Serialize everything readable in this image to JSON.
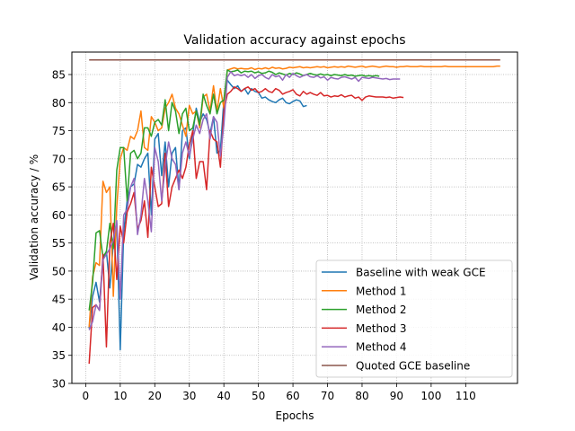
{
  "chart_data": {
    "type": "line",
    "title": "Validation accuracy against epochs",
    "xlabel": "Epochs",
    "ylabel": "Validation accuracy / %",
    "xlim": [
      -4,
      125
    ],
    "ylim": [
      30,
      89
    ],
    "xticks": [
      0,
      10,
      20,
      30,
      40,
      50,
      60,
      70,
      80,
      90,
      100,
      110
    ],
    "yticks": [
      30,
      35,
      40,
      45,
      50,
      55,
      60,
      65,
      70,
      75,
      80,
      85
    ],
    "grid": true,
    "legend_position": "bottom-right",
    "series": [
      {
        "name": "Baseline with weak GCE",
        "color": "#1f77b4",
        "x": [
          1,
          2,
          3,
          4,
          5,
          6,
          7,
          8,
          9,
          10,
          11,
          12,
          13,
          14,
          15,
          16,
          17,
          18,
          19,
          20,
          21,
          22,
          23,
          24,
          25,
          26,
          27,
          28,
          29,
          30,
          31,
          32,
          33,
          34,
          35,
          36,
          37,
          38,
          39,
          40,
          41,
          42,
          43,
          44,
          45,
          46,
          47,
          48,
          49,
          50,
          51,
          52,
          53,
          54,
          55,
          56,
          57,
          58,
          59,
          60,
          61,
          62,
          63,
          64
        ],
        "y": [
          39.8,
          45.5,
          48.0,
          44.5,
          52.0,
          53.5,
          47.0,
          55.0,
          58.5,
          36.0,
          57.0,
          62.5,
          65.0,
          65.5,
          69.0,
          68.5,
          70.0,
          71.0,
          60.0,
          73.5,
          74.5,
          67.0,
          73.0,
          65.0,
          71.0,
          72.0,
          64.5,
          75.0,
          75.5,
          70.0,
          74.5,
          79.0,
          76.5,
          78.0,
          77.0,
          74.5,
          77.5,
          71.0,
          71.5,
          80.5,
          84.0,
          83.2,
          82.5,
          83.0,
          82.0,
          82.5,
          81.5,
          82.5,
          82.0,
          81.8,
          80.8,
          81.0,
          80.5,
          80.2,
          80.0,
          80.5,
          80.8,
          80.0,
          79.8,
          80.2,
          80.5,
          80.3,
          79.3,
          79.5
        ]
      },
      {
        "name": "Method 1",
        "color": "#ff7f0e",
        "x": [
          1,
          2,
          3,
          4,
          5,
          6,
          7,
          8,
          9,
          10,
          11,
          12,
          13,
          14,
          15,
          16,
          17,
          18,
          19,
          20,
          21,
          22,
          23,
          24,
          25,
          26,
          27,
          28,
          29,
          30,
          31,
          32,
          33,
          34,
          35,
          36,
          37,
          38,
          39,
          40,
          41,
          42,
          43,
          44,
          45,
          46,
          47,
          48,
          49,
          50,
          51,
          52,
          53,
          54,
          55,
          56,
          57,
          58,
          59,
          60,
          61,
          62,
          63,
          64,
          65,
          66,
          67,
          68,
          69,
          70,
          71,
          72,
          73,
          74,
          75,
          76,
          77,
          78,
          79,
          80,
          81,
          82,
          83,
          84,
          85,
          86,
          87,
          88,
          89,
          90,
          91,
          92,
          93,
          94,
          95,
          96,
          97,
          98,
          99,
          100,
          101,
          102,
          103,
          104,
          105,
          106,
          107,
          108,
          109,
          110,
          111,
          112,
          113,
          114,
          115,
          116,
          117,
          118,
          119,
          120
        ],
        "y": [
          40.0,
          49.0,
          51.5,
          51.0,
          66.0,
          64.0,
          65.0,
          45.5,
          61.5,
          70.0,
          72.0,
          71.5,
          74.0,
          73.5,
          75.0,
          78.5,
          72.0,
          71.5,
          77.5,
          76.5,
          75.0,
          75.5,
          79.0,
          80.0,
          81.5,
          79.0,
          78.0,
          76.0,
          74.0,
          79.5,
          78.0,
          78.5,
          75.5,
          81.0,
          81.5,
          78.5,
          83.0,
          78.5,
          82.5,
          79.0,
          85.8,
          86.0,
          86.2,
          86.0,
          86.1,
          86.0,
          86.0,
          86.2,
          85.9,
          86.1,
          86.0,
          86.2,
          86.0,
          86.3,
          86.1,
          86.2,
          86.0,
          86.1,
          86.3,
          86.2,
          86.3,
          86.4,
          86.2,
          86.3,
          86.2,
          86.3,
          86.4,
          86.3,
          86.4,
          86.2,
          86.3,
          86.4,
          86.3,
          86.4,
          86.3,
          86.5,
          86.4,
          86.3,
          86.4,
          86.5,
          86.3,
          86.4,
          86.5,
          86.4,
          86.3,
          86.4,
          86.5,
          86.4,
          86.4,
          86.3,
          86.4,
          86.4,
          86.5,
          86.4,
          86.4,
          86.4,
          86.5,
          86.4,
          86.4,
          86.4,
          86.4,
          86.4,
          86.4,
          86.5,
          86.4,
          86.4,
          86.4,
          86.4,
          86.4,
          86.4,
          86.4,
          86.4,
          86.4,
          86.4,
          86.4,
          86.4,
          86.4,
          86.4,
          86.5,
          86.5
        ]
      },
      {
        "name": "Method 2",
        "color": "#2ca02c",
        "x": [
          1,
          2,
          3,
          4,
          5,
          6,
          7,
          8,
          9,
          10,
          11,
          12,
          13,
          14,
          15,
          16,
          17,
          18,
          19,
          20,
          21,
          22,
          23,
          24,
          25,
          26,
          27,
          28,
          29,
          30,
          31,
          32,
          33,
          34,
          35,
          36,
          37,
          38,
          39,
          40,
          41,
          42,
          43,
          44,
          45,
          46,
          47,
          48,
          49,
          50,
          51,
          52,
          53,
          54,
          55,
          56,
          57,
          58,
          59,
          60,
          61,
          62,
          63,
          64,
          65,
          66,
          67,
          68,
          69,
          70,
          71,
          72,
          73,
          74,
          75,
          76,
          77,
          78,
          79,
          80,
          81,
          82,
          83,
          84,
          85
        ],
        "y": [
          43.0,
          48.0,
          56.8,
          57.2,
          52.5,
          53.5,
          58.5,
          54.0,
          68.0,
          72.0,
          72.0,
          62.5,
          71.0,
          71.5,
          70.0,
          71.0,
          75.5,
          75.5,
          74.0,
          76.5,
          77.0,
          76.0,
          80.5,
          75.0,
          80.0,
          78.5,
          74.5,
          78.0,
          79.0,
          75.0,
          75.5,
          78.5,
          76.0,
          81.5,
          79.5,
          78.0,
          81.5,
          78.0,
          80.0,
          80.5,
          85.8,
          85.5,
          85.6,
          85.8,
          85.3,
          85.6,
          85.5,
          85.6,
          85.3,
          85.5,
          85.2,
          85.3,
          85.6,
          85.4,
          85.0,
          85.3,
          85.1,
          84.9,
          85.2,
          85.0,
          85.3,
          85.1,
          84.8,
          85.0,
          85.2,
          85.0,
          84.9,
          85.1,
          84.9,
          85.0,
          84.8,
          85.0,
          84.9,
          84.8,
          85.0,
          84.8,
          84.9,
          84.7,
          84.8,
          84.9,
          84.7,
          84.8,
          84.7,
          84.8,
          84.7
        ]
      },
      {
        "name": "Method 3",
        "color": "#d62728",
        "x": [
          1,
          2,
          3,
          4,
          5,
          6,
          7,
          8,
          9,
          10,
          11,
          12,
          13,
          14,
          15,
          16,
          17,
          18,
          19,
          20,
          21,
          22,
          23,
          24,
          25,
          26,
          27,
          28,
          29,
          30,
          31,
          32,
          33,
          34,
          35,
          36,
          37,
          38,
          39,
          40,
          41,
          42,
          43,
          44,
          45,
          46,
          47,
          48,
          49,
          50,
          51,
          52,
          53,
          54,
          55,
          56,
          57,
          58,
          59,
          60,
          61,
          62,
          63,
          64,
          65,
          66,
          67,
          68,
          69,
          70,
          71,
          72,
          73,
          74,
          75,
          76,
          77,
          78,
          79,
          80,
          81,
          82,
          83,
          84,
          85,
          86,
          87,
          88,
          89,
          90,
          91,
          92
        ],
        "y": [
          33.5,
          43.5,
          44.0,
          43.0,
          53.0,
          36.5,
          55.0,
          58.5,
          48.5,
          58.0,
          55.0,
          60.5,
          62.0,
          64.0,
          57.5,
          59.0,
          62.5,
          56.0,
          68.5,
          65.0,
          61.5,
          62.0,
          71.0,
          61.5,
          65.0,
          66.5,
          68.0,
          66.5,
          68.5,
          72.5,
          75.0,
          66.5,
          69.5,
          69.5,
          64.5,
          75.0,
          73.5,
          73.0,
          68.5,
          78.5,
          81.5,
          82.0,
          82.8,
          82.5,
          82.0,
          82.5,
          82.8,
          82.2,
          82.5,
          81.8,
          82.0,
          82.5,
          82.0,
          81.8,
          82.5,
          82.2,
          81.5,
          81.8,
          82.0,
          82.3,
          81.5,
          81.2,
          82.0,
          81.5,
          81.8,
          81.5,
          81.3,
          81.8,
          81.2,
          81.3,
          81.0,
          81.2,
          81.1,
          81.4,
          81.0,
          81.2,
          81.3,
          80.8,
          81.0,
          80.4,
          81.0,
          81.2,
          81.1,
          81.0,
          81.0,
          81.0,
          80.9,
          81.0,
          80.8,
          80.9,
          81.0,
          80.9
        ]
      },
      {
        "name": "Method 4",
        "color": "#9467bd",
        "x": [
          1,
          2,
          3,
          4,
          5,
          6,
          7,
          8,
          9,
          10,
          11,
          12,
          13,
          14,
          15,
          16,
          17,
          18,
          19,
          20,
          21,
          22,
          23,
          24,
          25,
          26,
          27,
          28,
          29,
          30,
          31,
          32,
          33,
          34,
          35,
          36,
          37,
          38,
          39,
          40,
          41,
          42,
          43,
          44,
          45,
          46,
          47,
          48,
          49,
          50,
          51,
          52,
          53,
          54,
          55,
          56,
          57,
          58,
          59,
          60,
          61,
          62,
          63,
          64,
          65,
          66,
          67,
          68,
          69,
          70,
          71,
          72,
          73,
          74,
          75,
          76,
          77,
          78,
          79,
          80,
          81,
          82,
          83,
          84,
          85,
          86,
          87,
          88,
          89,
          90,
          91
        ],
        "y": [
          39.5,
          41.0,
          44.0,
          43.0,
          52.0,
          53.0,
          54.0,
          55.5,
          59.0,
          45.0,
          60.0,
          61.0,
          65.0,
          66.5,
          56.5,
          60.0,
          66.5,
          62.5,
          57.0,
          72.0,
          69.5,
          62.5,
          68.5,
          73.0,
          70.0,
          69.0,
          64.5,
          71.0,
          73.0,
          70.5,
          73.5,
          76.0,
          74.5,
          77.0,
          78.0,
          73.5,
          77.5,
          76.5,
          70.5,
          76.0,
          84.5,
          85.5,
          84.8,
          85.0,
          84.8,
          85.0,
          84.5,
          85.0,
          84.3,
          84.8,
          85.0,
          84.5,
          84.2,
          85.0,
          84.6,
          84.8,
          84.0,
          85.0,
          84.5,
          85.2,
          84.8,
          84.5,
          84.8,
          85.0,
          84.6,
          84.5,
          84.8,
          84.4,
          84.6,
          84.0,
          84.5,
          84.3,
          84.2,
          84.5,
          84.6,
          84.4,
          84.2,
          84.5,
          83.8,
          84.5,
          84.4,
          84.3,
          84.5,
          84.4,
          84.3,
          84.2,
          84.3,
          84.1,
          84.2,
          84.2,
          84.2
        ]
      },
      {
        "name": "Quoted GCE baseline",
        "color": "#8c564b",
        "x": [
          1,
          120
        ],
        "y": [
          87.6,
          87.6
        ]
      }
    ]
  }
}
